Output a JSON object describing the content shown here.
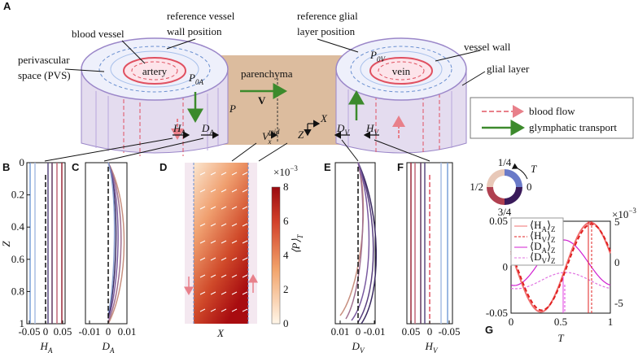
{
  "panel_labels": [
    "A",
    "B",
    "C",
    "D",
    "E",
    "F",
    "G"
  ],
  "schematic": {
    "blood_vessel": "blood vessel",
    "reference_vessel_wall": [
      "reference vessel",
      "wall position"
    ],
    "pvs": [
      "perivascular",
      "space (PVS)"
    ],
    "artery": "artery",
    "p0a": {
      "t": "P",
      "s": "0A"
    },
    "parenchyma": "parenchyma",
    "v": "V",
    "p": "P",
    "vxmid": {
      "t": "V",
      "sup": "mid",
      "s": "x"
    },
    "x": "X",
    "z": "Z",
    "ha": {
      "t": "H",
      "s": "A"
    },
    "da": {
      "t": "D",
      "s": "A"
    },
    "dv": {
      "t": "D",
      "s": "V"
    },
    "hv": {
      "t": "H",
      "s": "V"
    },
    "reference_glial": [
      "reference glial",
      "layer position"
    ],
    "vein": "vein",
    "p0v": {
      "t": "P",
      "s": "0V"
    },
    "vessel_wall": "vessel wall",
    "glial_layer": "glial layer"
  },
  "legend": [
    "blood flow",
    "glymphatic transport"
  ],
  "panel_b": {
    "ylabel": "Z",
    "yticks": [
      "0",
      "0.2",
      "0.4",
      "0.6",
      "0.8",
      "1"
    ],
    "xticks": [
      "-0.05",
      "0",
      "0.05"
    ],
    "xlabel": {
      "t": "H",
      "s": "A"
    }
  },
  "panel_c": {
    "xticks": [
      "-0.01",
      "0",
      "0.01"
    ],
    "xlabel": {
      "t": "D",
      "s": "A"
    }
  },
  "panel_d": {
    "xlabel": "X",
    "colorbar_ticks": [
      "0",
      "2",
      "4",
      "6",
      "8"
    ],
    "colorbar_multiplier": {
      "t": "×10",
      "sup": "−3"
    },
    "colorbar_label": {
      "t": "⟨P⟩",
      "s": "T"
    }
  },
  "panel_e": {
    "xticks": [
      "0.01",
      "0",
      "-0.01"
    ],
    "xlabel": {
      "t": "D",
      "s": "V"
    }
  },
  "panel_f": {
    "xticks": [
      "0.05",
      "0",
      "-0.05"
    ],
    "xlabel": {
      "t": "H",
      "s": "V"
    }
  },
  "color_wheel": {
    "labels": [
      "1/4",
      "0",
      "3/4",
      "1/2"
    ],
    "symbol": "T"
  },
  "panel_g": {
    "legend": [
      {
        "t": "⟨H",
        "s": "A",
        "t2": "⟩",
        "s2": "Z"
      },
      {
        "t": "⟨H",
        "s": "V",
        "t2": "⟩",
        "s2": "Z"
      },
      {
        "t": "⟨D",
        "s": "A",
        "t2": "⟩",
        "s2": "Z"
      },
      {
        "t": "⟨D",
        "s": "V",
        "t2": "⟩",
        "s2": "Z"
      }
    ],
    "yticks_left": [
      "0.05",
      "0",
      "-0.05"
    ],
    "yticks_right": [
      "5",
      "0",
      "-5"
    ],
    "right_multiplier": {
      "t": "×10",
      "sup": "−3"
    },
    "xticks": [
      "0",
      "0.5",
      "1"
    ],
    "xlabel": "T"
  }
}
